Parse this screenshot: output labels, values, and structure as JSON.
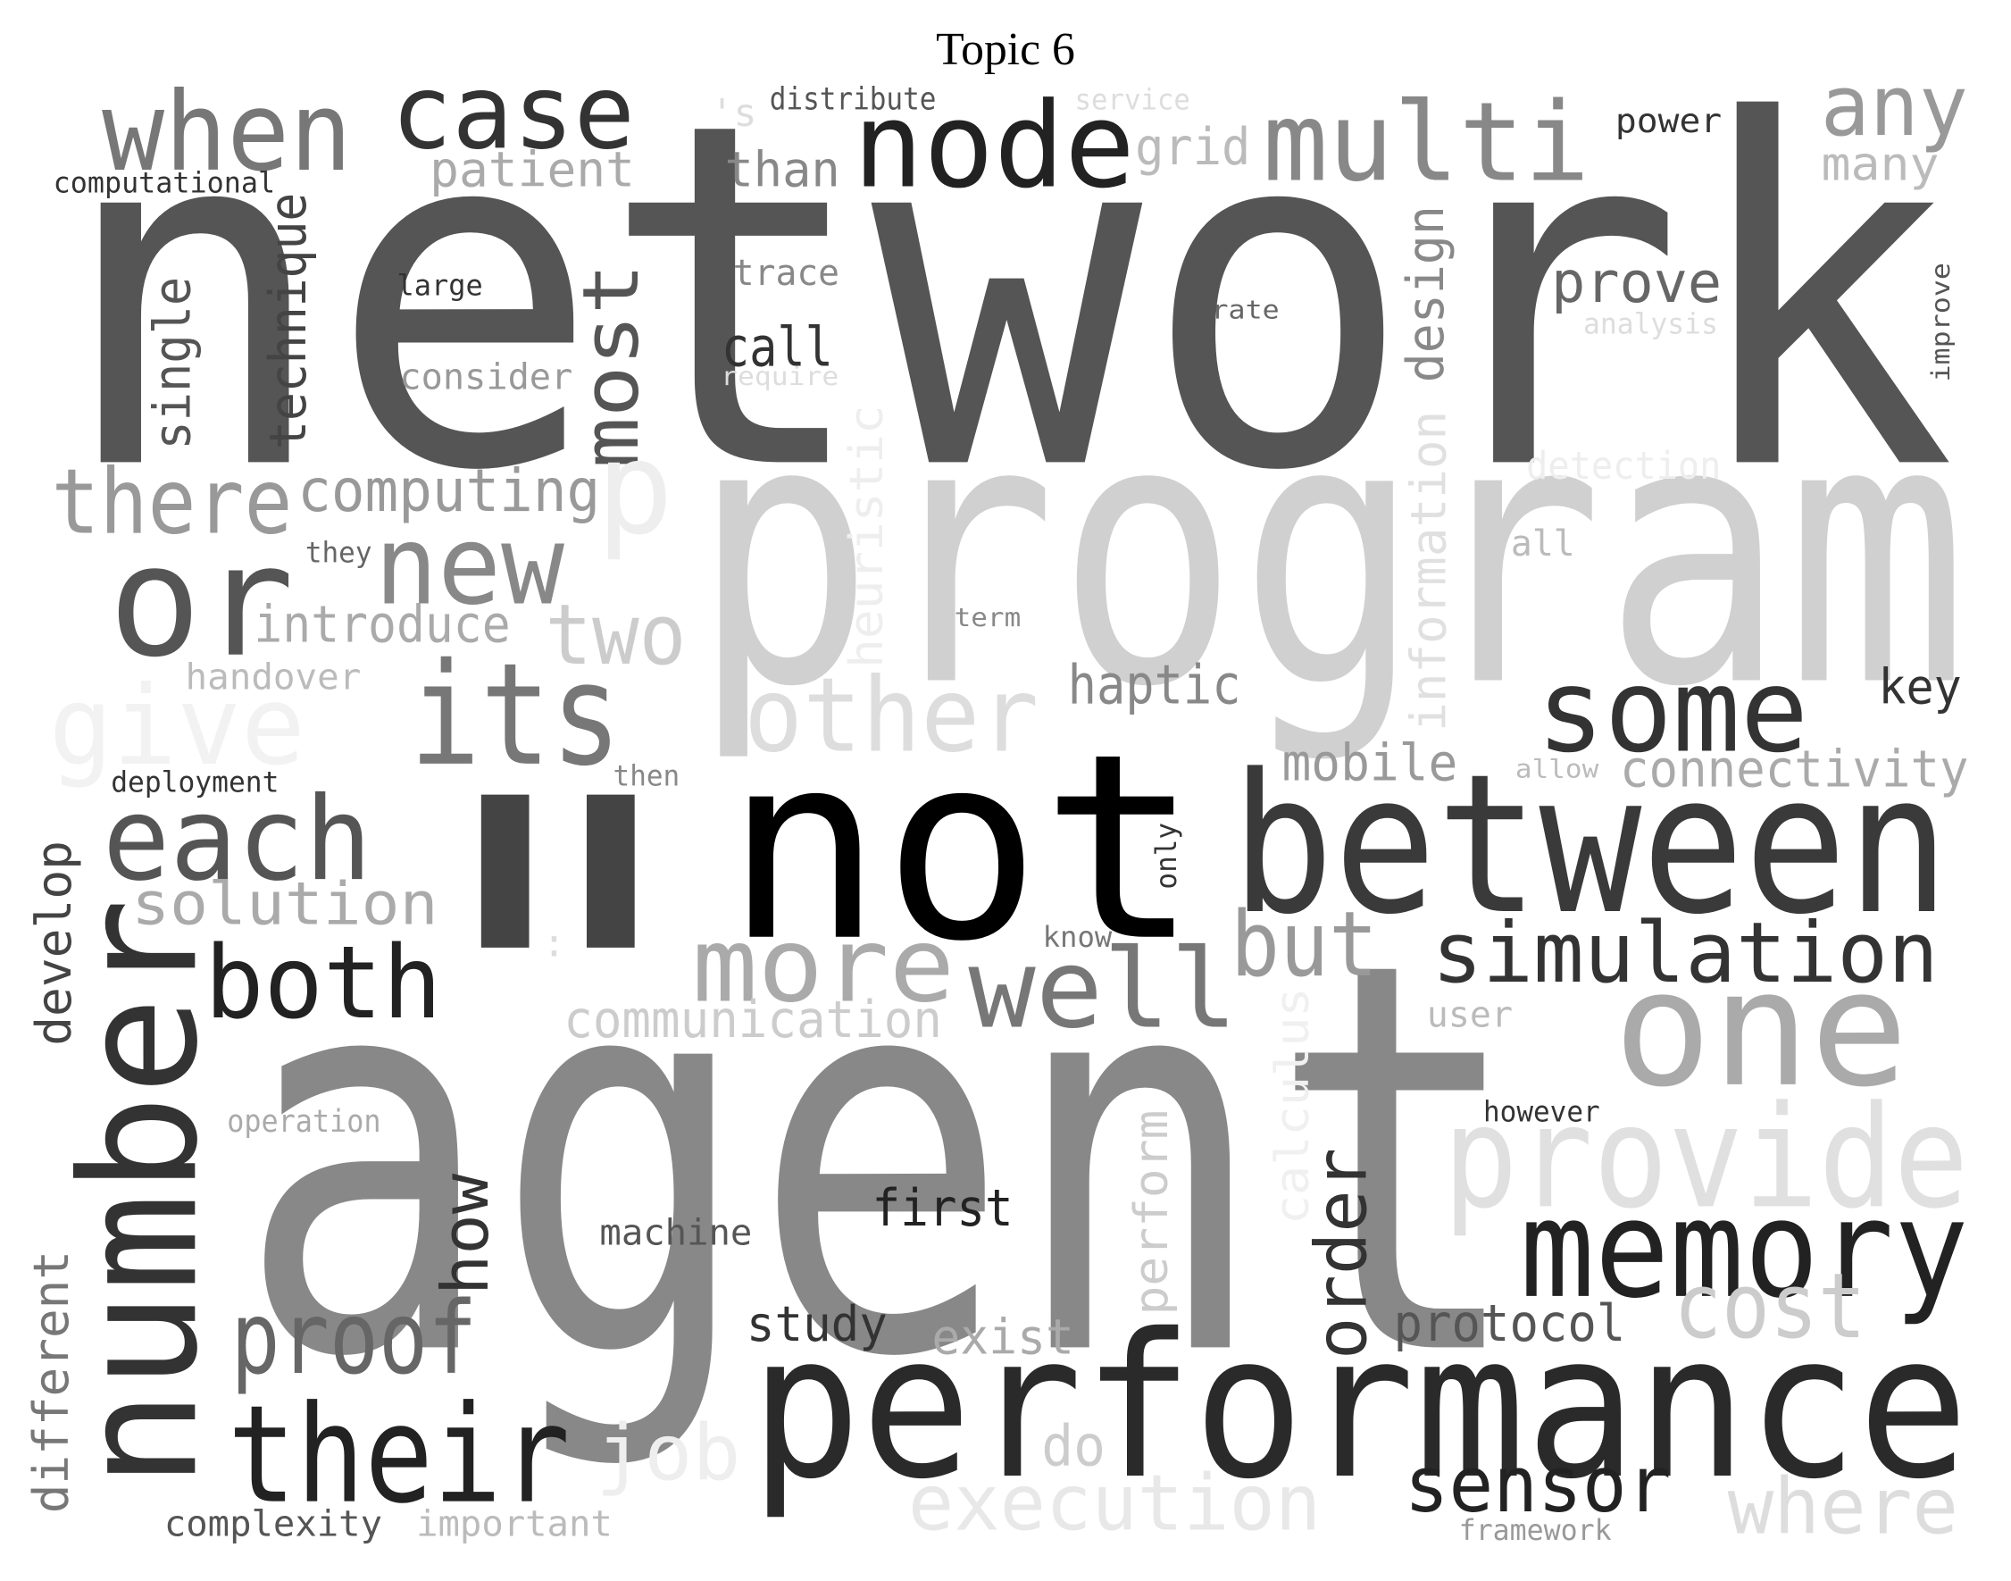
{
  "chart_data": {
    "type": "wordcloud",
    "title": "Topic 6",
    "words": [
      {
        "text": "network",
        "color": "#555555"
      },
      {
        "text": "program",
        "color": "#d0d0d0"
      },
      {
        "text": "agent",
        "color": "#888888"
      },
      {
        "text": "not",
        "color": "#000000"
      },
      {
        "text": "between",
        "color": "#3a3a3a"
      },
      {
        "text": "performance",
        "color": "#2a2a2a"
      },
      {
        "text": "number",
        "color": "#333333"
      },
      {
        "text": "\"",
        "color": "#444444"
      },
      {
        "text": "when",
        "color": "#777777"
      },
      {
        "text": "case",
        "color": "#333333"
      },
      {
        "text": "node",
        "color": "#222222"
      },
      {
        "text": "multi",
        "color": "#888888"
      },
      {
        "text": "any",
        "color": "#999999"
      },
      {
        "text": "'s",
        "color": "#dddddd"
      },
      {
        "text": "distribute",
        "color": "#555555"
      },
      {
        "text": "service",
        "color": "#dddddd"
      },
      {
        "text": "power",
        "color": "#333333"
      },
      {
        "text": "patient",
        "color": "#aaaaaa"
      },
      {
        "text": "than",
        "color": "#888888"
      },
      {
        "text": "grid",
        "color": "#bbbbbb"
      },
      {
        "text": "many",
        "color": "#bbbbbb"
      },
      {
        "text": "computational",
        "color": "#333333"
      },
      {
        "text": "technique",
        "color": "#444444"
      },
      {
        "text": "single",
        "color": "#555555"
      },
      {
        "text": "most",
        "color": "#555555"
      },
      {
        "text": "design",
        "color": "#888888"
      },
      {
        "text": "improve",
        "color": "#555555"
      },
      {
        "text": "trace",
        "color": "#888888"
      },
      {
        "text": "large",
        "color": "#333333"
      },
      {
        "text": "rate",
        "color": "#666666"
      },
      {
        "text": "prove",
        "color": "#666666"
      },
      {
        "text": "analysis",
        "color": "#dddddd"
      },
      {
        "text": "call",
        "color": "#333333"
      },
      {
        "text": "consider",
        "color": "#999999"
      },
      {
        "text": "require",
        "color": "#dddddd"
      },
      {
        "text": "heuristic",
        "color": "#eeeeee"
      },
      {
        "text": "information",
        "color": "#e0e0e0"
      },
      {
        "text": "detection",
        "color": "#eeeeee"
      },
      {
        "text": "there",
        "color": "#999999"
      },
      {
        "text": "computing",
        "color": "#999999"
      },
      {
        "text": "p",
        "color": "#eeeeee"
      },
      {
        "text": "they",
        "color": "#666666"
      },
      {
        "text": "or",
        "color": "#555555"
      },
      {
        "text": "new",
        "color": "#888888"
      },
      {
        "text": "all",
        "color": "#bbbbbb"
      },
      {
        "text": "introduce",
        "color": "#aaaaaa"
      },
      {
        "text": "two",
        "color": "#cccccc"
      },
      {
        "text": "term",
        "color": "#888888"
      },
      {
        "text": "handover",
        "color": "#bbbbbb"
      },
      {
        "text": "haptic",
        "color": "#888888"
      },
      {
        "text": "its",
        "color": "#777777"
      },
      {
        "text": "other",
        "color": "#dddddd"
      },
      {
        "text": "give",
        "color": "#f2f2f2"
      },
      {
        "text": "some",
        "color": "#333333"
      },
      {
        "text": "key",
        "color": "#333333"
      },
      {
        "text": "deployment",
        "color": "#333333"
      },
      {
        "text": "then",
        "color": "#888888"
      },
      {
        "text": "mobile",
        "color": "#999999"
      },
      {
        "text": "allow",
        "color": "#bbbbbb"
      },
      {
        "text": "connectivity",
        "color": "#aaaaaa"
      },
      {
        "text": "each",
        "color": "#555555"
      },
      {
        "text": "solution",
        "color": "#aaaaaa"
      },
      {
        "text": "only",
        "color": "#333333"
      },
      {
        "text": "develop",
        "color": "#444444"
      },
      {
        "text": "more",
        "color": "#aaaaaa"
      },
      {
        "text": "know",
        "color": "#777777"
      },
      {
        "text": "but",
        "color": "#999999"
      },
      {
        "text": "simulation",
        "color": "#333333"
      },
      {
        "text": "both",
        "color": "#222222"
      },
      {
        "text": "well",
        "color": "#777777"
      },
      {
        "text": "communication",
        "color": "#cccccc"
      },
      {
        "text": ":",
        "color": "#dddddd"
      },
      {
        "text": "one",
        "color": "#aaaaaa"
      },
      {
        "text": "user",
        "color": "#bbbbbb"
      },
      {
        "text": "however",
        "color": "#333333"
      },
      {
        "text": "operation",
        "color": "#aaaaaa"
      },
      {
        "text": "calculus",
        "color": "#f0f0f0"
      },
      {
        "text": "perform",
        "color": "#cccccc"
      },
      {
        "text": "how",
        "color": "#333333"
      },
      {
        "text": "order",
        "color": "#333333"
      },
      {
        "text": "provide",
        "color": "#e0e0e0"
      },
      {
        "text": "first",
        "color": "#222222"
      },
      {
        "text": "machine",
        "color": "#555555"
      },
      {
        "text": "memory",
        "color": "#222222"
      },
      {
        "text": "different",
        "color": "#777777"
      },
      {
        "text": "proof",
        "color": "#666666"
      },
      {
        "text": "study",
        "color": "#333333"
      },
      {
        "text": "exist",
        "color": "#aaaaaa"
      },
      {
        "text": "protocol",
        "color": "#555555"
      },
      {
        "text": "cost",
        "color": "#cccccc"
      },
      {
        "text": "their",
        "color": "#222222"
      },
      {
        "text": "job",
        "color": "#eeeeee"
      },
      {
        "text": "do",
        "color": "#cccccc"
      },
      {
        "text": "execution",
        "color": "#e8e8e8"
      },
      {
        "text": "sensor",
        "color": "#222222"
      },
      {
        "text": "where",
        "color": "#dddddd"
      },
      {
        "text": "complexity",
        "color": "#555555"
      },
      {
        "text": "important",
        "color": "#bbbbbb"
      },
      {
        "text": "framework",
        "color": "#999999"
      }
    ]
  }
}
